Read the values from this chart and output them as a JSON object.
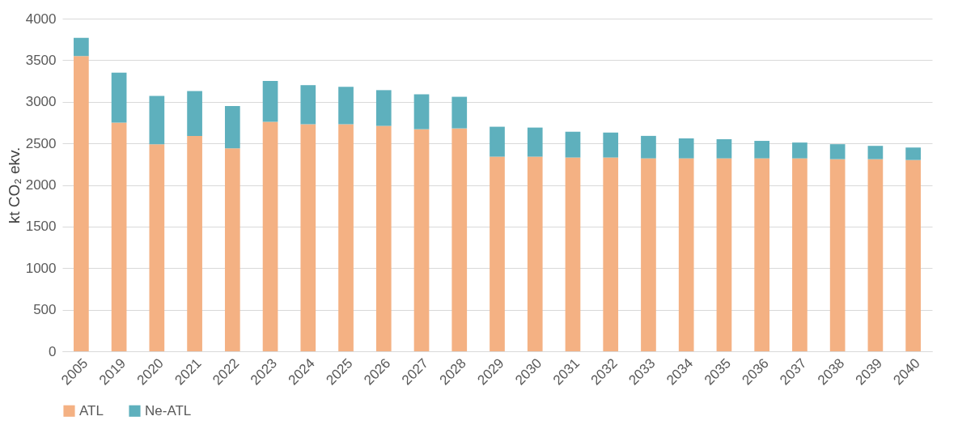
{
  "chart_data": {
    "type": "bar",
    "stacked": true,
    "ylabel": "kt CO₂ ekv.",
    "categories": [
      "2005",
      "2019",
      "2020",
      "2021",
      "2022",
      "2023",
      "2024",
      "2025",
      "2026",
      "2027",
      "2028",
      "2029",
      "2030",
      "2031",
      "2032",
      "2033",
      "2034",
      "2035",
      "2036",
      "2037",
      "2038",
      "2039",
      "2040"
    ],
    "series": [
      {
        "name": "ATL",
        "color": "#f4b183",
        "values": [
          3550,
          2750,
          2490,
          2590,
          2440,
          2760,
          2730,
          2730,
          2710,
          2670,
          2680,
          2340,
          2340,
          2330,
          2330,
          2320,
          2320,
          2320,
          2320,
          2320,
          2310,
          2310,
          2300
        ]
      },
      {
        "name": "Ne-ATL",
        "color": "#5eb0bd",
        "values": [
          220,
          600,
          580,
          540,
          510,
          490,
          470,
          450,
          430,
          420,
          380,
          360,
          350,
          310,
          300,
          270,
          240,
          230,
          210,
          190,
          180,
          160,
          150
        ]
      }
    ],
    "ylim": [
      0,
      4000
    ],
    "yticks": [
      0,
      500,
      1000,
      1500,
      2000,
      2500,
      3000,
      3500,
      4000
    ],
    "grid": "y",
    "legend": "bottom"
  }
}
